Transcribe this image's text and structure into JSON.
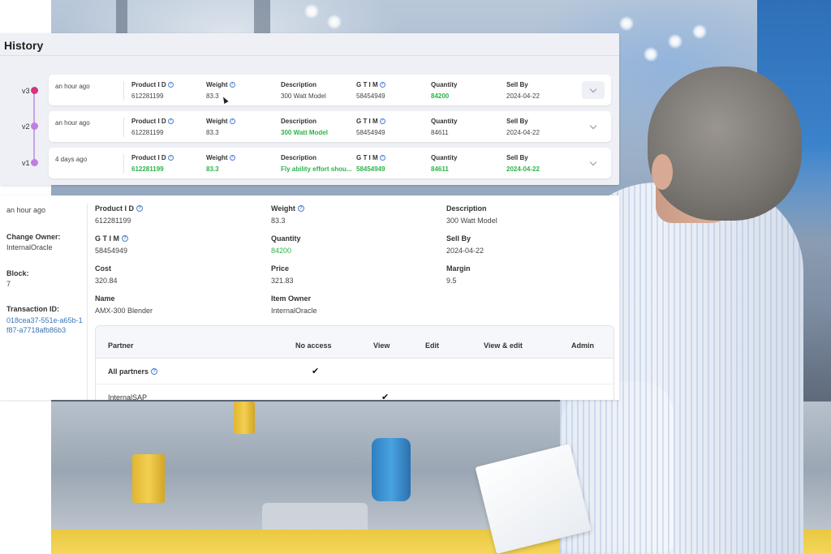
{
  "history": {
    "title": "History",
    "versions": [
      {
        "label": "v3",
        "dot_color": "#d6337a",
        "time": "an hour ago",
        "fields": [
          {
            "label": "Product I D",
            "value": "612281199",
            "help": true,
            "changed": false
          },
          {
            "label": "Weight",
            "value": "83.3",
            "help": true,
            "changed": false
          },
          {
            "label": "Description",
            "value": "300 Watt Model",
            "help": false,
            "changed": false
          },
          {
            "label": "G T I M",
            "value": "58454949",
            "help": true,
            "changed": false
          },
          {
            "label": "Quantity",
            "value": "84200",
            "help": false,
            "changed": true
          },
          {
            "label": "Sell By",
            "value": "2024-04-22",
            "help": false,
            "changed": false
          }
        ]
      },
      {
        "label": "v2",
        "dot_color": "#c07fe0",
        "time": "an hour ago",
        "fields": [
          {
            "label": "Product I D",
            "value": "612281199",
            "help": true,
            "changed": false
          },
          {
            "label": "Weight",
            "value": "83.3",
            "help": true,
            "changed": false
          },
          {
            "label": "Description",
            "value": "300 Watt Model",
            "help": false,
            "changed": true
          },
          {
            "label": "G T I M",
            "value": "58454949",
            "help": true,
            "changed": false
          },
          {
            "label": "Quantity",
            "value": "84611",
            "help": false,
            "changed": false
          },
          {
            "label": "Sell By",
            "value": "2024-04-22",
            "help": false,
            "changed": false
          }
        ]
      },
      {
        "label": "v1",
        "dot_color": "#c07fe0",
        "time": "4 days ago",
        "fields": [
          {
            "label": "Product I D",
            "value": "612281199",
            "help": true,
            "changed": true
          },
          {
            "label": "Weight",
            "value": "83.3",
            "help": true,
            "changed": true
          },
          {
            "label": "Description",
            "value": "Fly ability effort shou...",
            "help": false,
            "changed": true
          },
          {
            "label": "G T I M",
            "value": "58454949",
            "help": true,
            "changed": true
          },
          {
            "label": "Quantity",
            "value": "84611",
            "help": false,
            "changed": true
          },
          {
            "label": "Sell By",
            "value": "2024-04-22",
            "help": false,
            "changed": true
          }
        ]
      }
    ]
  },
  "detail": {
    "time": "an hour ago",
    "change_owner": {
      "label": "Change Owner:",
      "value": "InternalOracle"
    },
    "block": {
      "label": "Block:",
      "value": "7"
    },
    "transaction": {
      "label": "Transaction ID:",
      "value": "018cea37-551e-a65b-1f87-a7718afb86b3"
    },
    "fields": {
      "product_id": {
        "label": "Product I D",
        "value": "612281199"
      },
      "weight": {
        "label": "Weight",
        "value": "83.3"
      },
      "description": {
        "label": "Description",
        "value": "300 Watt Model"
      },
      "gtim": {
        "label": "G T I M",
        "value": "58454949"
      },
      "quantity": {
        "label": "Quantity",
        "value": "84200"
      },
      "sell_by": {
        "label": "Sell By",
        "value": "2024-04-22"
      },
      "cost": {
        "label": "Cost",
        "value": "320.84"
      },
      "price": {
        "label": "Price",
        "value": "321.83"
      },
      "margin": {
        "label": "Margin",
        "value": "9.5"
      },
      "name": {
        "label": "Name",
        "value": "AMX-300 Blender"
      },
      "item_owner": {
        "label": "Item Owner",
        "value": "InternalOracle"
      }
    },
    "permissions": {
      "headers": [
        "Partner",
        "No access",
        "View",
        "Edit",
        "View & edit",
        "Admin"
      ],
      "rows": [
        {
          "partner": "All partners",
          "check": "✔"
        },
        {
          "partner": "InternalSAP",
          "check": "✔"
        }
      ]
    }
  },
  "colors": {
    "changed": "#2db34a",
    "link": "#3a74b8",
    "accent_dot": "#d6337a",
    "timeline": "#c9a4e6"
  }
}
